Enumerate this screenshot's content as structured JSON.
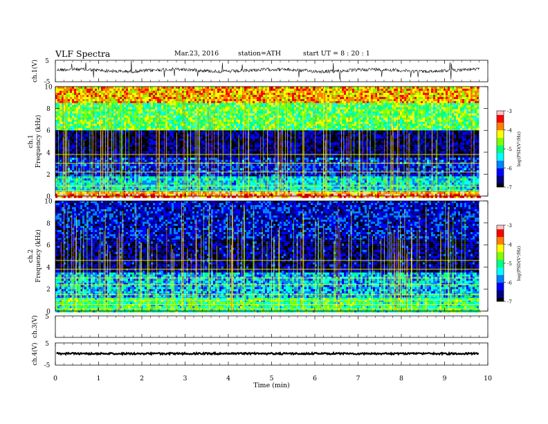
{
  "header": {
    "title": "VLF  Spectra",
    "date": "Mar.23, 2016",
    "station": "station=ATH",
    "start_ut": "start  UT  =    8  : 20 : 1"
  },
  "colors": {
    "spectrogram_scale": [
      "#000000",
      "#000080",
      "#0000ff",
      "#0080ff",
      "#00ffff",
      "#00ff80",
      "#80ff00",
      "#ffff00",
      "#ff8000",
      "#ff0000",
      "#ffc8c8"
    ],
    "trace": "#000000"
  },
  "chart_data": [
    {
      "type": "line",
      "panel": "ch1-waveform",
      "ylabel": "ch.1(V)",
      "ylim": [
        -5,
        5
      ],
      "y_ticks": [
        "5",
        "-5"
      ],
      "xlim": [
        0,
        10
      ],
      "baseline": 0.3,
      "noise_amplitude": 0.6
    },
    {
      "type": "heatmap",
      "panel": "ch1-spectrogram",
      "ylabel": "ch.1\nFrequency  (kHz)",
      "ylim": [
        0,
        10
      ],
      "y_ticks": [
        "0",
        "2",
        "4",
        "6",
        "8",
        "10"
      ],
      "xlim": [
        0,
        9.8
      ],
      "colorbar": {
        "label": "log(PSD(V²/Hz)",
        "range": [
          -7,
          -3
        ],
        "ticks": [
          "-3",
          "-4",
          "-5",
          "-6",
          "-7"
        ]
      },
      "bands": [
        {
          "freq": [
            8.5,
            10
          ],
          "level": -4.0
        },
        {
          "freq": [
            6,
            8.5
          ],
          "level": -4.8
        },
        {
          "freq": [
            3.5,
            6
          ],
          "level": -6.7
        },
        {
          "freq": [
            1.8,
            3.5
          ],
          "level": -6.2
        },
        {
          "freq": [
            0.4,
            1.8
          ],
          "level": -5.4
        },
        {
          "freq": [
            0,
            0.4
          ],
          "level": -3.5
        }
      ],
      "lines_khz": [
        0.3,
        0.5,
        0.9,
        2.2,
        3.0,
        3.8
      ]
    },
    {
      "type": "heatmap",
      "panel": "ch2-spectrogram",
      "ylabel": "ch.2\nFrequency  (kHz)",
      "ylim": [
        0,
        10
      ],
      "y_ticks": [
        "0",
        "2",
        "4",
        "6",
        "8",
        "10"
      ],
      "xlim": [
        0,
        9.8
      ],
      "colorbar": {
        "label": "log(PSD(V²/Hz)",
        "range": [
          -7,
          -3
        ],
        "ticks": [
          "-3",
          "-4",
          "-5",
          "-6",
          "-7"
        ]
      },
      "bands": [
        {
          "freq": [
            6.5,
            10
          ],
          "level": -6.3
        },
        {
          "freq": [
            3.5,
            6.5
          ],
          "level": -6.6
        },
        {
          "freq": [
            1.2,
            3.5
          ],
          "level": -5.6
        },
        {
          "freq": [
            0,
            1.2
          ],
          "level": -5.0
        }
      ],
      "lines_khz": [
        0.2,
        0.6,
        1.0,
        1.5,
        2.4,
        3.0,
        3.8,
        4.6
      ]
    },
    {
      "type": "line",
      "panel": "ch3-waveform",
      "ylabel": "ch.3(V)",
      "ylim": [
        -5,
        5
      ],
      "y_ticks": [
        "5"
      ],
      "xlim": [
        0,
        10
      ],
      "flat": true
    },
    {
      "type": "line",
      "panel": "ch4-waveform",
      "ylabel": "ch.4(V)",
      "ylim": [
        -5,
        5
      ],
      "y_ticks": [
        "5",
        "-5"
      ],
      "xlim": [
        0,
        9.8
      ],
      "baseline": 0.2
    }
  ],
  "x_axis": {
    "xlabel": "Time  (min)",
    "xlim": [
      0,
      10
    ],
    "ticks": [
      "0",
      "1",
      "2",
      "3",
      "4",
      "5",
      "6",
      "7",
      "8",
      "9",
      "10"
    ]
  }
}
